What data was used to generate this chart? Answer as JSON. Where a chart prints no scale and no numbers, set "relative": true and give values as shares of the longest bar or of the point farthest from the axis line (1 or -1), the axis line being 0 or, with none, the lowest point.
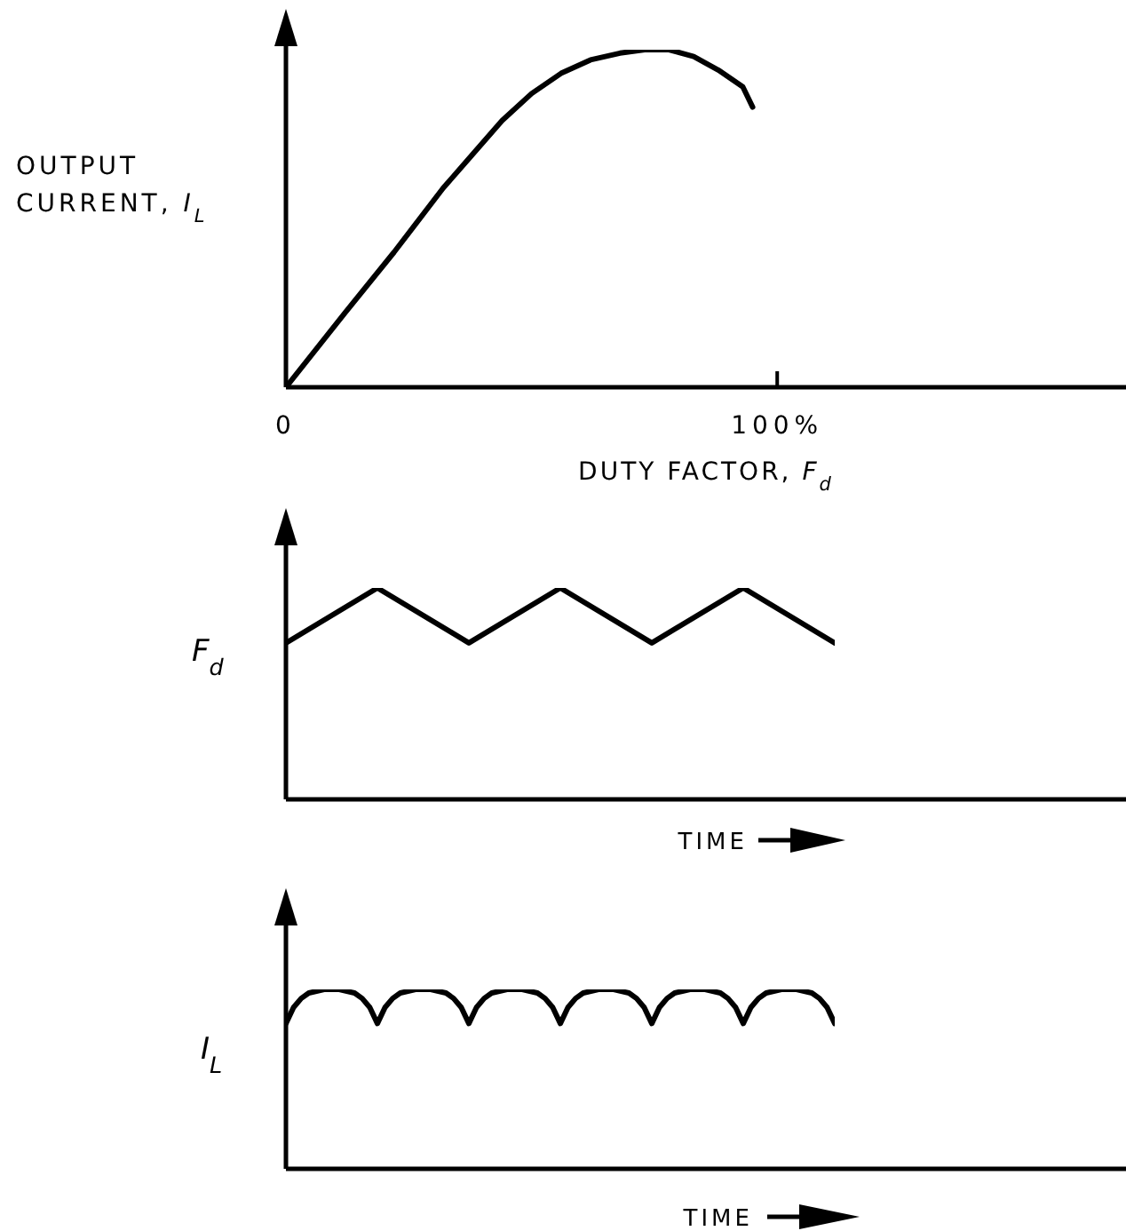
{
  "chart_data": [
    {
      "type": "line",
      "xlabel": "DUTY FACTOR, F$_{d}$",
      "ylabel": "OUTPUT\nCURRENT, I$_{L}$",
      "x": [
        0,
        12,
        22,
        32,
        38,
        44,
        50,
        56,
        62,
        68,
        73,
        78,
        83,
        88,
        93,
        95
      ],
      "values": [
        0,
        0.22,
        0.4,
        0.59,
        0.69,
        0.79,
        0.87,
        0.93,
        0.97,
        0.99,
        1,
        1,
        0.98,
        0.94,
        0.89,
        0.83
      ],
      "color": "#000000",
      "relative": true,
      "xlim": [
        0,
        171
      ],
      "xticks": [
        0,
        {
          "value": 100,
          "label": "100%"
        }
      ],
      "tick_labels": "x"
    },
    {
      "type": "line",
      "xlabel": "TIME",
      "ylabel": "F$_{d}$",
      "categories": [
        null,
        null,
        null,
        null,
        null,
        null,
        null
      ],
      "values": [
        0.74,
        1,
        0.74,
        1,
        0.74,
        1,
        0.74
      ],
      "color": "#000000",
      "relative": true,
      "tick_labels": false
    },
    {
      "type": "line",
      "xlabel": "TIME",
      "ylabel": "I$_{L}$",
      "categories": [
        null,
        null,
        null,
        null,
        null,
        null,
        null,
        null,
        null,
        null,
        null,
        null,
        null,
        null,
        null,
        null,
        null,
        null,
        null,
        null,
        null,
        null,
        null,
        null,
        null,
        null,
        null,
        null,
        null,
        null,
        null,
        null,
        null,
        null,
        null,
        null,
        null,
        null,
        null,
        null,
        null,
        null,
        null,
        null,
        null,
        null,
        null,
        null,
        null,
        null,
        null,
        null,
        null,
        null,
        null,
        null,
        null,
        null,
        null,
        null,
        null,
        null,
        null,
        null,
        null,
        null,
        null,
        null,
        null,
        null,
        null,
        null,
        null
      ],
      "values": [
        0.81,
        0.9,
        0.95,
        0.98,
        0.99,
        1,
        1,
        1,
        0.99,
        0.98,
        0.95,
        0.9,
        0.81,
        0.9,
        0.95,
        0.98,
        0.99,
        1,
        1,
        1,
        0.99,
        0.98,
        0.95,
        0.9,
        0.81,
        0.9,
        0.95,
        0.98,
        0.99,
        1,
        1,
        1,
        0.99,
        0.98,
        0.95,
        0.9,
        0.81,
        0.9,
        0.95,
        0.98,
        0.99,
        1,
        1,
        1,
        0.99,
        0.98,
        0.95,
        0.9,
        0.81,
        0.9,
        0.95,
        0.98,
        0.99,
        1,
        1,
        1,
        0.99,
        0.98,
        0.95,
        0.9,
        0.81,
        0.9,
        0.95,
        0.98,
        0.99,
        1,
        1,
        1,
        0.99,
        0.98,
        0.95,
        0.9,
        0.81
      ],
      "color": "#000000",
      "relative": true,
      "tick_labels": false
    }
  ]
}
